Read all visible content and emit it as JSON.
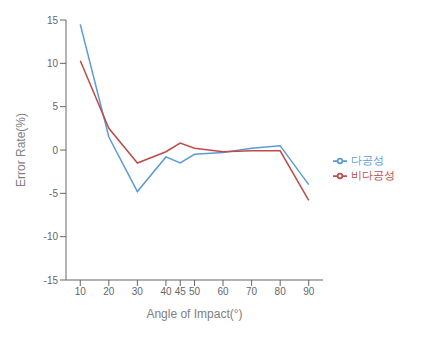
{
  "chart_data": {
    "type": "line",
    "x": [
      10,
      20,
      30,
      40,
      45,
      50,
      60,
      70,
      80,
      90
    ],
    "series": [
      {
        "name": "다공성",
        "color": "#5B9BD5",
        "values": [
          14.5,
          1.5,
          -4.8,
          -0.8,
          -1.5,
          -0.5,
          -0.3,
          0.2,
          0.5,
          -4.0
        ]
      },
      {
        "name": "비다공성",
        "color": "#BE4B48",
        "values": [
          10.3,
          2.5,
          -1.5,
          -0.2,
          0.8,
          0.2,
          -0.2,
          -0.1,
          -0.1,
          -5.8
        ]
      }
    ],
    "xlabel": "Angle of Impact(°)",
    "ylabel": "Error Rate(%)",
    "xlim": [
      5,
      95
    ],
    "xticks": [
      10,
      20,
      30,
      40,
      45,
      50,
      60,
      70,
      80,
      90
    ],
    "ylim": [
      -15,
      15
    ],
    "yticks": [
      -15,
      -10,
      -5,
      0,
      5,
      10,
      15
    ],
    "legend": "right"
  }
}
